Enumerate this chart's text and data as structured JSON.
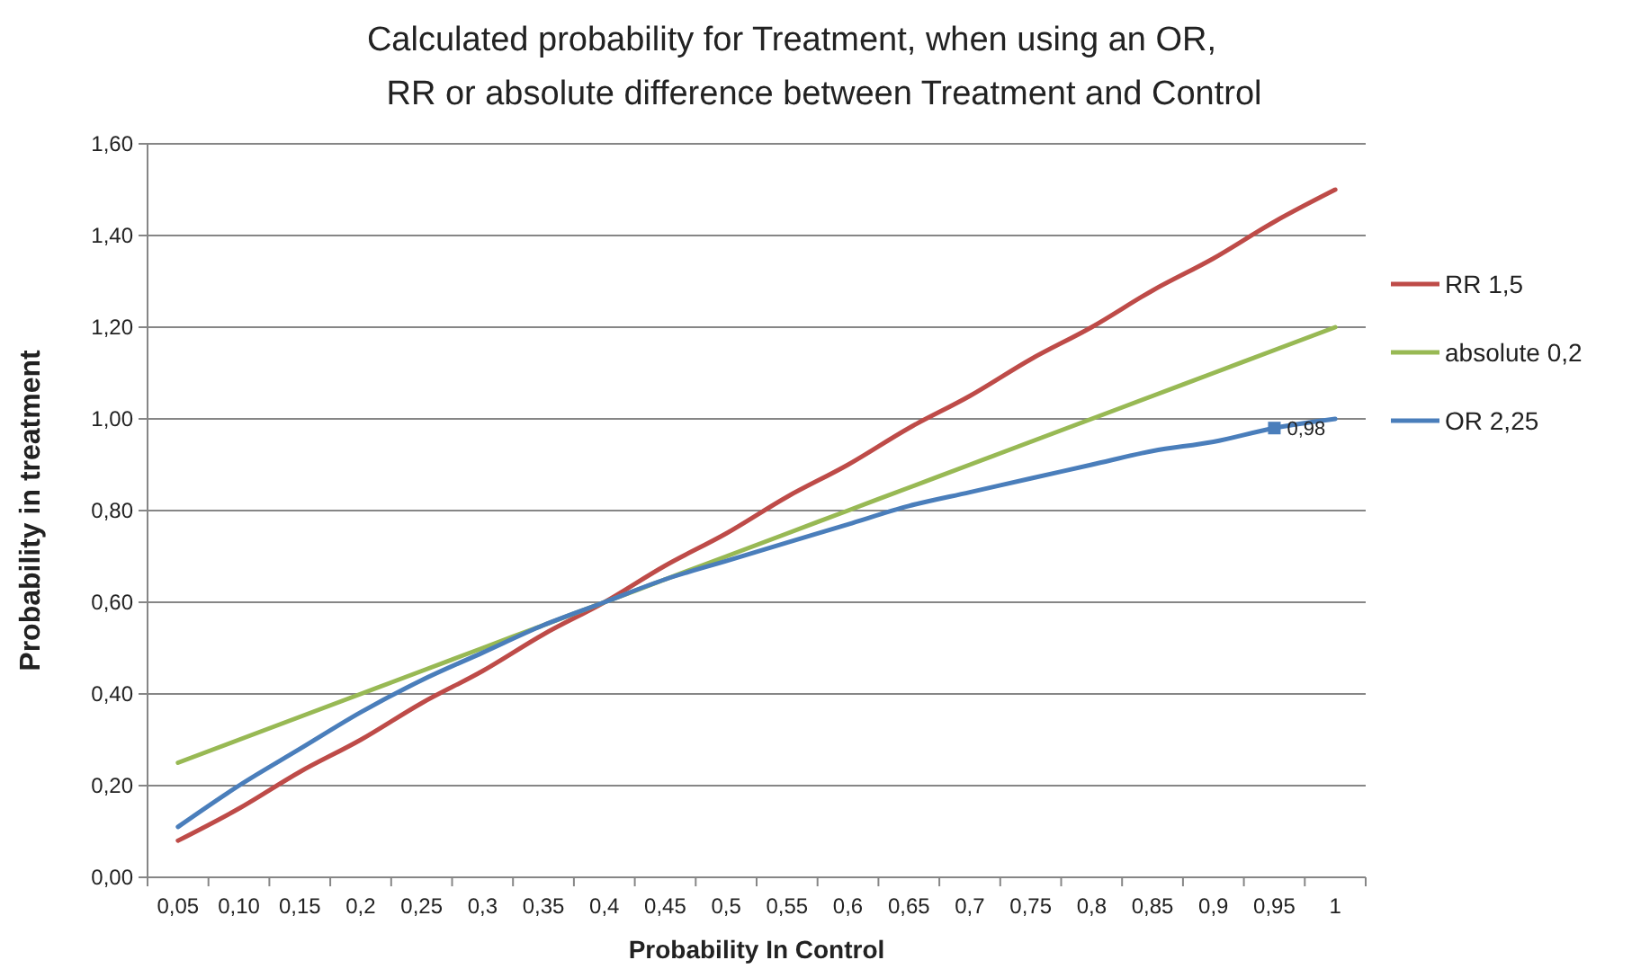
{
  "chart_data": {
    "type": "line",
    "title": "Calculated probability for Treatment, when using an OR, RR or absolute difference between Treatment and Control",
    "xlabel": "Probability In Control",
    "ylabel": "Probability in treatment",
    "categories": [
      "0,05",
      "0,10",
      "0,15",
      "0,2",
      "0,25",
      "0,3",
      "0,35",
      "0,4",
      "0,45",
      "0,5",
      "0,55",
      "0,6",
      "0,65",
      "0,7",
      "0,75",
      "0,8",
      "0,85",
      "0,9",
      "0,95",
      "1"
    ],
    "series": [
      {
        "name": "RR 1,5",
        "color": "#be4b48",
        "values": [
          0.08,
          0.15,
          0.23,
          0.3,
          0.38,
          0.45,
          0.53,
          0.6,
          0.68,
          0.75,
          0.83,
          0.9,
          0.98,
          1.05,
          1.13,
          1.2,
          1.28,
          1.35,
          1.43,
          1.5
        ]
      },
      {
        "name": "absolute 0,2",
        "color": "#98b954",
        "values": [
          0.25,
          0.3,
          0.35,
          0.4,
          0.45,
          0.5,
          0.55,
          0.6,
          0.65,
          0.7,
          0.75,
          0.8,
          0.85,
          0.9,
          0.95,
          1.0,
          1.05,
          1.1,
          1.15,
          1.2
        ]
      },
      {
        "name": "OR 2,25",
        "color": "#4a7ebb",
        "values": [
          0.11,
          0.2,
          0.28,
          0.36,
          0.43,
          0.49,
          0.55,
          0.6,
          0.65,
          0.69,
          0.73,
          0.77,
          0.81,
          0.84,
          0.87,
          0.9,
          0.93,
          0.95,
          0.98,
          1.0
        ],
        "value_labels": [
          null,
          null,
          null,
          null,
          null,
          null,
          null,
          null,
          null,
          null,
          null,
          null,
          null,
          null,
          null,
          null,
          null,
          null,
          "0,98",
          null
        ]
      }
    ],
    "ylim": [
      0,
      1.6
    ],
    "yticks": [
      {
        "value": 0,
        "label": "0,00"
      },
      {
        "value": 0.2,
        "label": "0,20"
      },
      {
        "value": 0.4,
        "label": "0,40"
      },
      {
        "value": 0.6,
        "label": "0,60"
      },
      {
        "value": 0.8,
        "label": "0,80"
      },
      {
        "value": 1,
        "label": "1,00"
      },
      {
        "value": 1.2,
        "label": "1,20"
      },
      {
        "value": 1.4,
        "label": "1,40"
      },
      {
        "value": 1.6,
        "label": "1,60"
      }
    ],
    "grid": "y",
    "legend": "right"
  }
}
